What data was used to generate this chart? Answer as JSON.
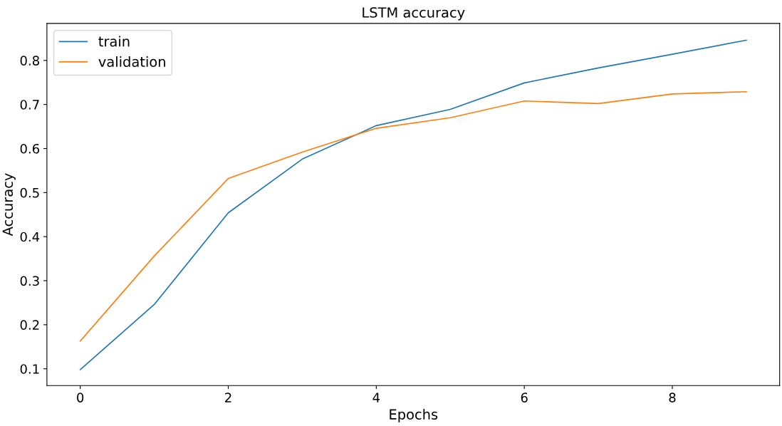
{
  "chart_data": {
    "type": "line",
    "title": "LSTM accuracy",
    "xlabel": "Epochs",
    "ylabel": "Accuracy",
    "x": [
      0,
      1,
      2,
      3,
      4,
      5,
      6,
      7,
      8,
      9
    ],
    "series": [
      {
        "name": "train",
        "color": "#1f77b4",
        "values": [
          0.098,
          0.246,
          0.454,
          0.576,
          0.652,
          0.689,
          0.749,
          0.783,
          0.814,
          0.846
        ]
      },
      {
        "name": "validation",
        "color": "#ff7f0e",
        "values": [
          0.163,
          0.356,
          0.532,
          0.592,
          0.646,
          0.67,
          0.708,
          0.702,
          0.724,
          0.729
        ]
      }
    ],
    "xlim": [
      -0.45,
      9.45
    ],
    "xticks": [
      0,
      2,
      4,
      6,
      8
    ],
    "ylim": [
      0.062,
      0.884
    ],
    "yticks": [
      0.1,
      0.2,
      0.3,
      0.4,
      0.5,
      0.6,
      0.7,
      0.8
    ],
    "grid": false,
    "legend": "top left",
    "marker": "none",
    "line_style": "solid"
  }
}
